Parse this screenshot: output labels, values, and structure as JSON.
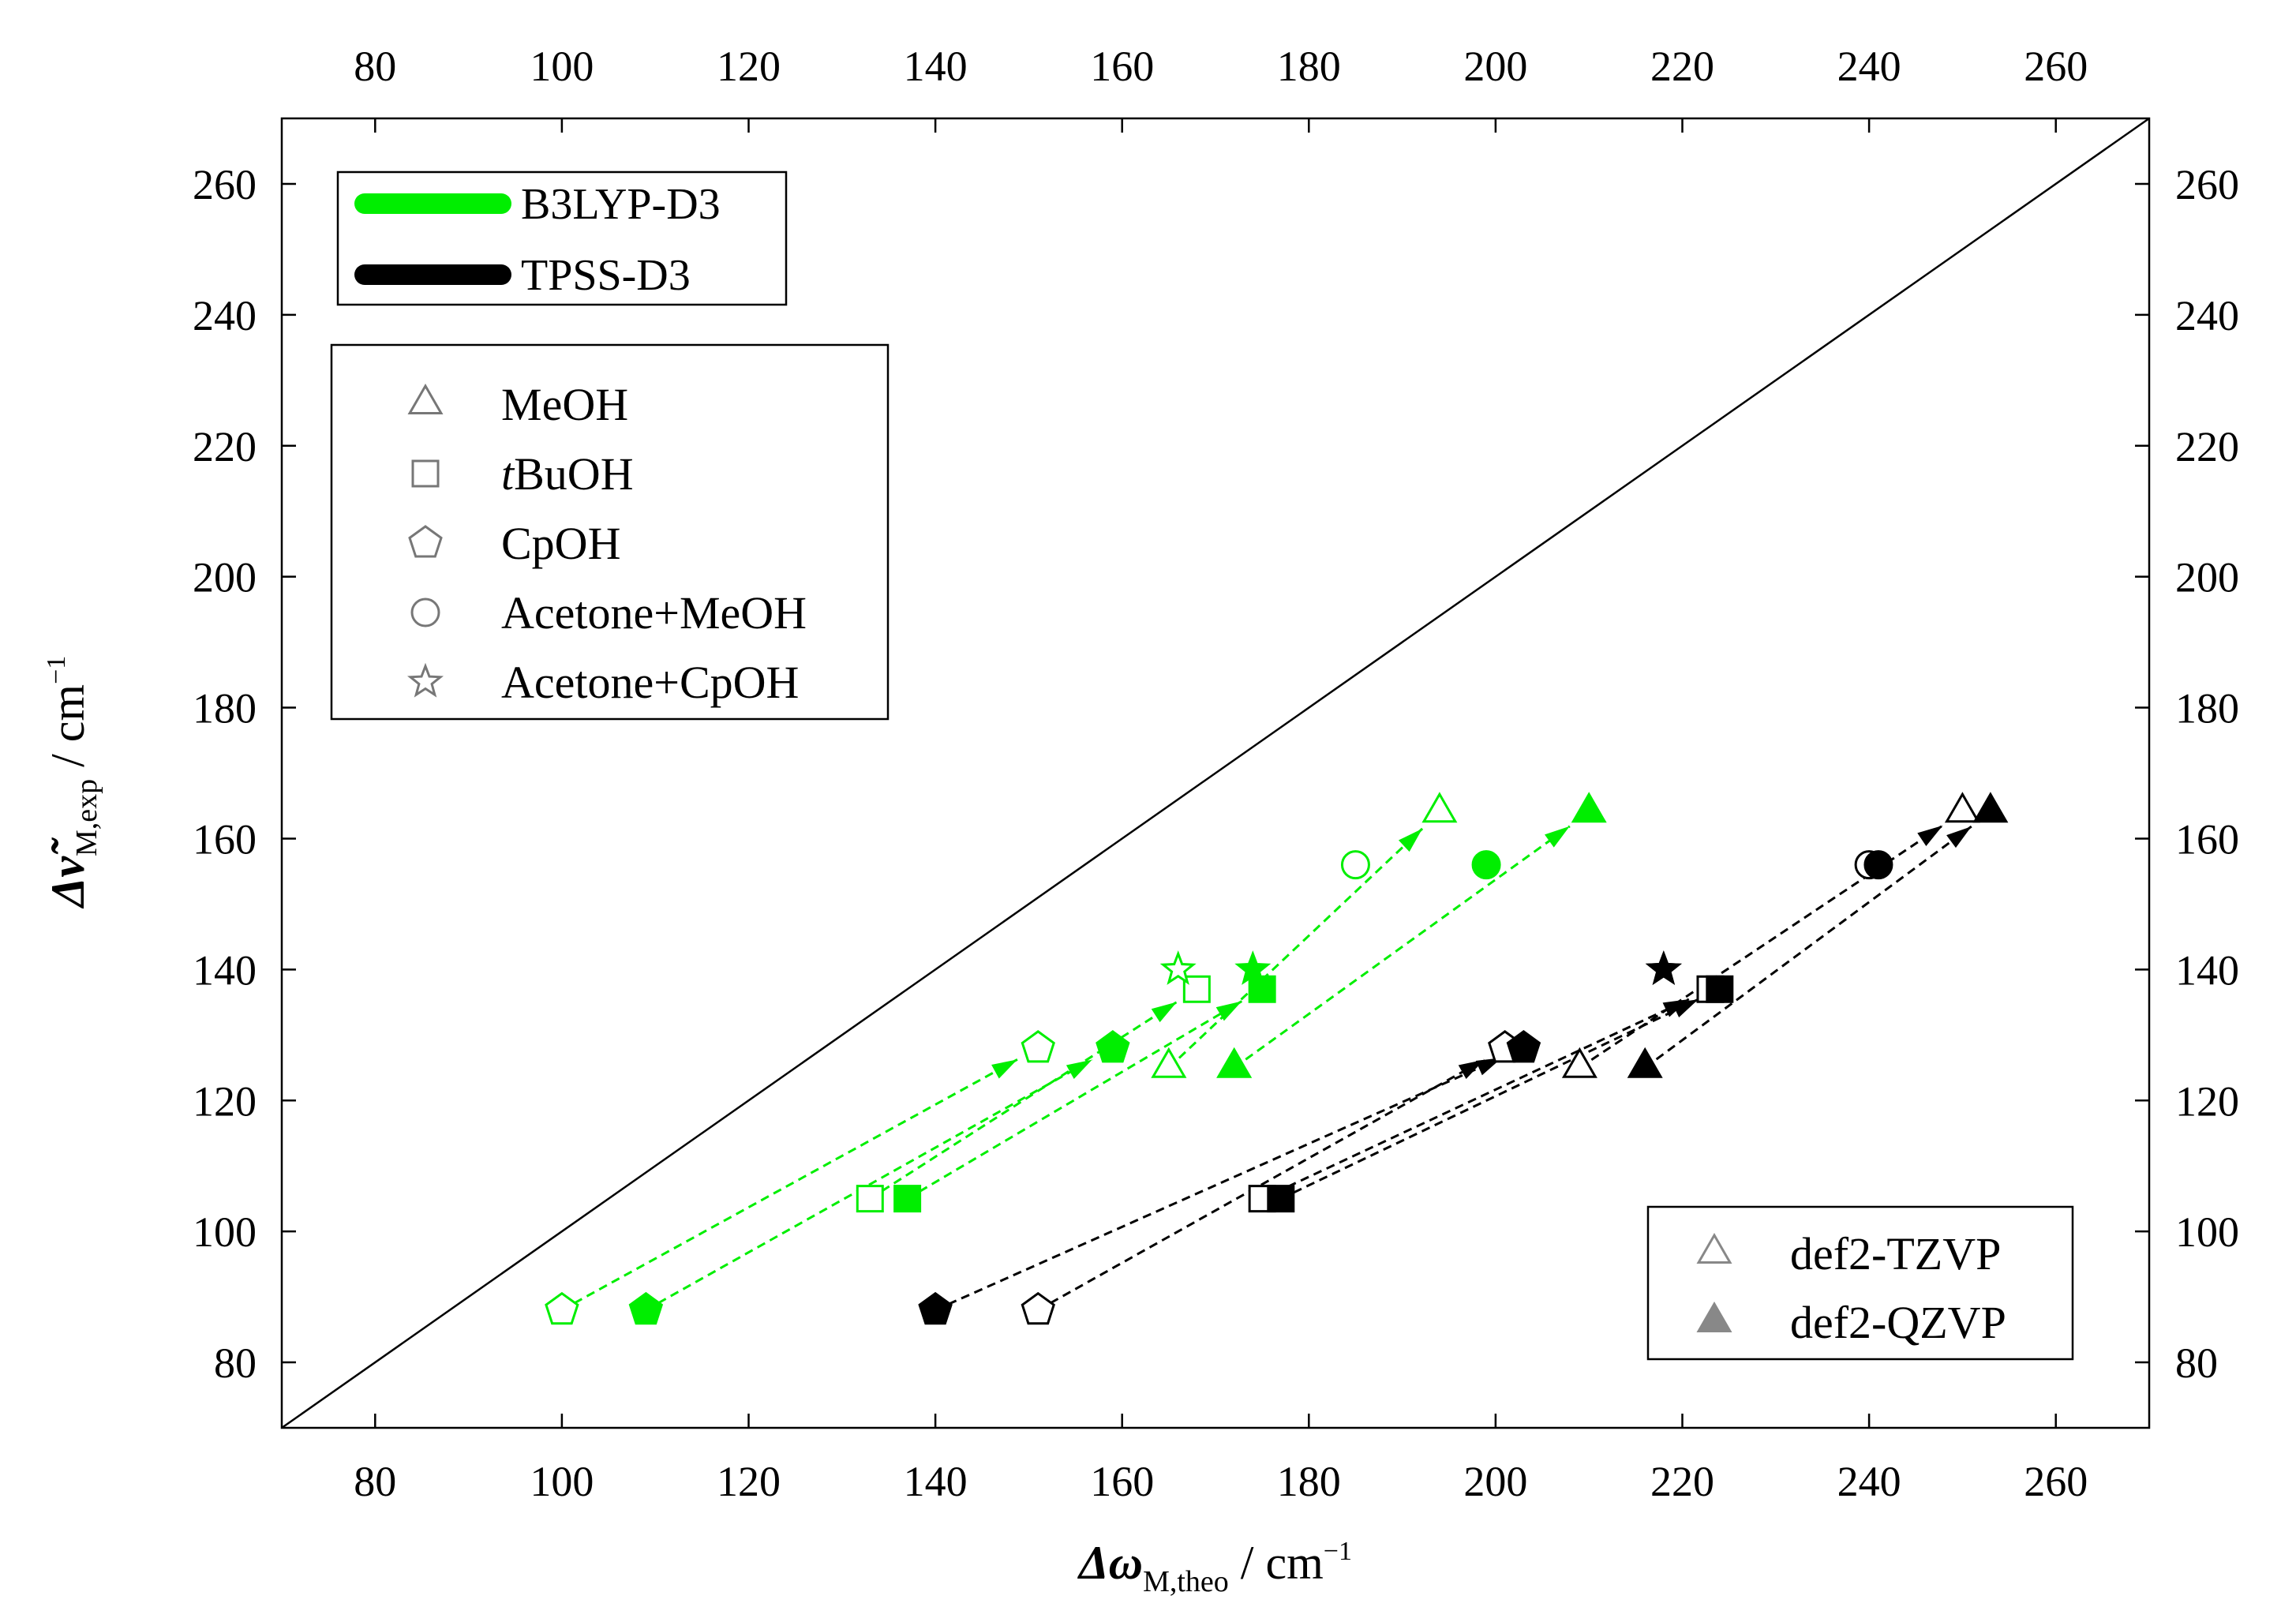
{
  "chart_data": {
    "type": "scatter",
    "title": "",
    "xlabel_main": "Δω",
    "xlabel_sub": "M,theo",
    "xlabel_unit": " / cm",
    "xlabel_sup": "−1",
    "ylabel_main": "Δν̃",
    "ylabel_sub": "M,exp",
    "ylabel_unit": " / cm",
    "ylabel_sup": "−1",
    "xlim": [
      70,
      270
    ],
    "ylim": [
      70,
      270
    ],
    "ticks": [
      80,
      100,
      120,
      140,
      160,
      180,
      200,
      220,
      240,
      260
    ],
    "tick_labels": [
      "80",
      "100",
      "120",
      "140",
      "160",
      "180",
      "200",
      "220",
      "240",
      "260"
    ],
    "diagonal": [
      [
        70,
        70
      ],
      [
        270,
        270
      ]
    ],
    "colors": {
      "B3LYP-D3": "#00ee00",
      "TPSS-D3": "#000000",
      "legend_basis": "#888888"
    },
    "legend_methods": [
      {
        "label": "B3LYP-D3",
        "color": "#00ee00"
      },
      {
        "label": "TPSS-D3",
        "color": "#000000"
      }
    ],
    "legend_systems": [
      {
        "marker": "triangle",
        "label": "MeOH"
      },
      {
        "marker": "square",
        "label_italic": "t",
        "label_rest": "BuOH"
      },
      {
        "marker": "pentagon",
        "label": "CpOH"
      },
      {
        "marker": "circle",
        "label": "Acetone+MeOH"
      },
      {
        "marker": "star",
        "label": "Acetone+CpOH"
      }
    ],
    "legend_basis": [
      {
        "fill": false,
        "label": "def2-TZVP"
      },
      {
        "fill": true,
        "label": "def2-QZVP"
      }
    ],
    "series": [
      {
        "method": "B3LYP-D3",
        "system": "MeOH",
        "marker": "triangle",
        "tzvp": [
          165,
          125
        ],
        "qzvp": [
          172,
          125
        ],
        "tzvp_top": [
          194,
          164
        ],
        "qzvp_top": [
          210,
          164
        ]
      },
      {
        "method": "B3LYP-D3",
        "system": "tBuOH",
        "marker": "square",
        "tzvp": [
          133,
          105
        ],
        "qzvp": [
          137,
          105
        ],
        "tzvp_top": [
          168,
          137
        ],
        "qzvp_top": [
          175,
          137
        ]
      },
      {
        "method": "B3LYP-D3",
        "system": "CpOH",
        "marker": "pentagon",
        "tzvp": [
          100,
          88
        ],
        "qzvp": [
          109,
          88
        ],
        "tzvp_top": [
          151,
          128
        ],
        "qzvp_top": [
          159,
          128
        ]
      },
      {
        "method": "B3LYP-D3",
        "system": "Acetone+MeOH",
        "marker": "circle",
        "tzvp": [
          185,
          156
        ],
        "qzvp": [
          199,
          156
        ]
      },
      {
        "method": "B3LYP-D3",
        "system": "Acetone+CpOH",
        "marker": "star",
        "tzvp": [
          166,
          140
        ],
        "qzvp": [
          174,
          140
        ]
      },
      {
        "method": "TPSS-D3",
        "system": "MeOH",
        "marker": "triangle",
        "tzvp": [
          209,
          125
        ],
        "qzvp": [
          216,
          125
        ],
        "tzvp_top": [
          250,
          164
        ],
        "qzvp_top": [
          253,
          164
        ]
      },
      {
        "method": "TPSS-D3",
        "system": "tBuOH",
        "marker": "square",
        "tzvp": [
          175,
          105
        ],
        "qzvp": [
          177,
          105
        ],
        "tzvp_top": [
          223,
          137
        ],
        "qzvp_top": [
          224,
          137
        ]
      },
      {
        "method": "TPSS-D3",
        "system": "CpOH",
        "marker": "pentagon",
        "tzvp": [
          151,
          88
        ],
        "qzvp": [
          140,
          88
        ],
        "tzvp_top": [
          201,
          128
        ],
        "qzvp_top": [
          203,
          128
        ]
      },
      {
        "method": "TPSS-D3",
        "system": "Acetone+MeOH",
        "marker": "circle",
        "tzvp": [
          240,
          156
        ],
        "qzvp": [
          241,
          156
        ]
      },
      {
        "method": "TPSS-D3",
        "system": "Acetone+CpOH",
        "marker": "star",
        "tzvp": [
          218,
          140
        ],
        "qzvp": [
          218,
          140
        ]
      }
    ],
    "arrows": [
      {
        "method": "B3LYP-D3",
        "from": [
          100,
          88
        ],
        "to": [
          151,
          128
        ]
      },
      {
        "method": "B3LYP-D3",
        "from": [
          109,
          88
        ],
        "to": [
          159,
          128
        ]
      },
      {
        "method": "B3LYP-D3",
        "from": [
          133,
          105
        ],
        "to": [
          168,
          137
        ]
      },
      {
        "method": "B3LYP-D3",
        "from": [
          137,
          105
        ],
        "to": [
          175,
          137
        ]
      },
      {
        "method": "B3LYP-D3",
        "from": [
          165,
          125
        ],
        "to": [
          194,
          164
        ]
      },
      {
        "method": "B3LYP-D3",
        "from": [
          172,
          125
        ],
        "to": [
          210,
          164
        ]
      },
      {
        "method": "TPSS-D3",
        "from": [
          140,
          88
        ],
        "to": [
          203,
          128
        ]
      },
      {
        "method": "TPSS-D3",
        "from": [
          151,
          88
        ],
        "to": [
          201,
          128
        ]
      },
      {
        "method": "TPSS-D3",
        "from": [
          175,
          105
        ],
        "to": [
          223,
          137
        ]
      },
      {
        "method": "TPSS-D3",
        "from": [
          177,
          105
        ],
        "to": [
          224,
          137
        ]
      },
      {
        "method": "TPSS-D3",
        "from": [
          209,
          125
        ],
        "to": [
          250,
          164
        ]
      },
      {
        "method": "TPSS-D3",
        "from": [
          216,
          125
        ],
        "to": [
          253,
          164
        ]
      }
    ]
  }
}
